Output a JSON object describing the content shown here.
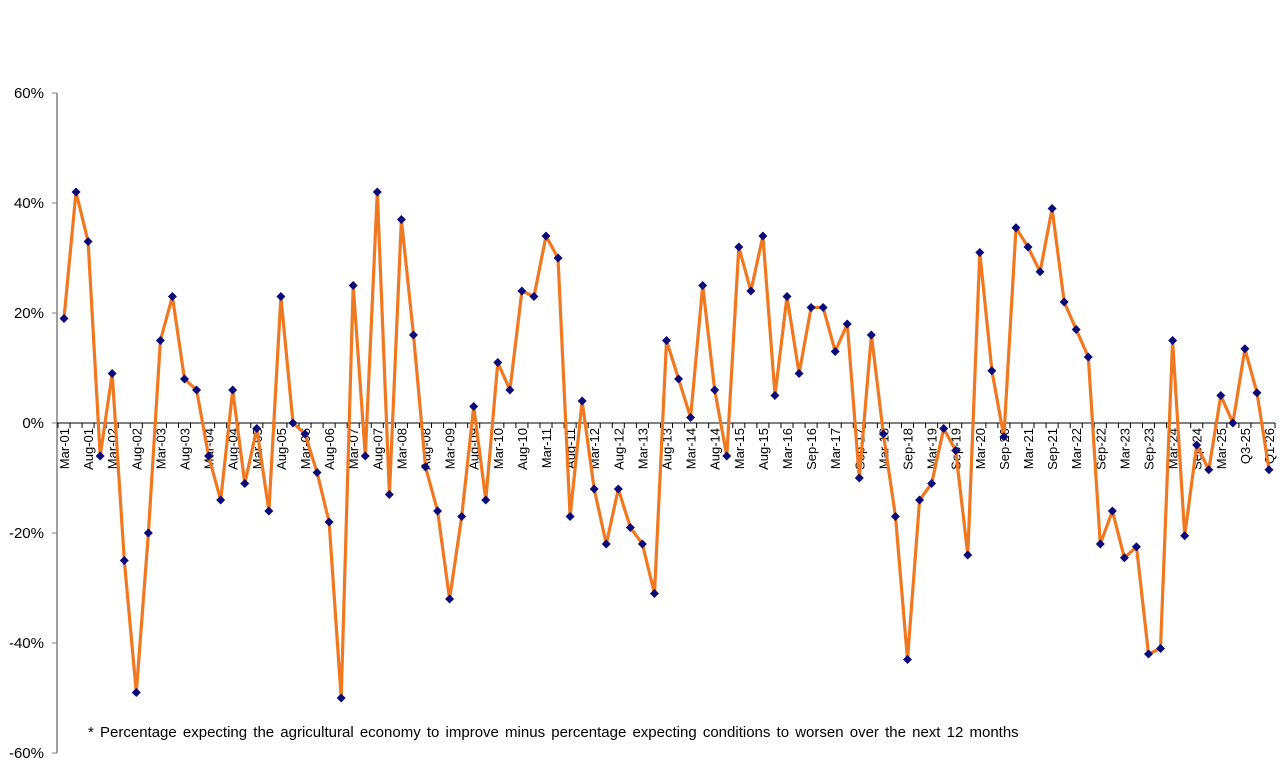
{
  "chart_data": {
    "type": "line",
    "title": "",
    "xlabel": "",
    "ylabel": "",
    "ylim": [
      -60,
      60
    ],
    "yticks": [
      "60%",
      "40%",
      "20%",
      "0%",
      "-20%",
      "-40%",
      "-60%"
    ],
    "ytick_values": [
      60,
      40,
      20,
      0,
      -20,
      -40,
      -60
    ],
    "grid": false,
    "legend": "none",
    "line_color": "#F07820",
    "marker_color": "#0A0A78",
    "marker": "diamond",
    "x_tick_labels": [
      "Mar-01",
      "Aug-01",
      "Mar-02",
      "Aug-02",
      "Mar-03",
      "Aug-03",
      "Mar-04",
      "Aug-04",
      "Mar-05",
      "Aug-05",
      "Mar-06",
      "Aug-06",
      "Mar-07",
      "Aug-07",
      "Mar-08",
      "Aug-08",
      "Mar-09",
      "Aug-09",
      "Mar-10",
      "Aug-10",
      "Mar-11",
      "Aug-11",
      "Mar-12",
      "Aug-12",
      "Mar-13",
      "Aug-13",
      "Mar-14",
      "Aug-14",
      "Mar-15",
      "Aug-15",
      "Mar-16",
      "Sep-16",
      "Mar-17",
      "Sep-17",
      "Mar-18",
      "Sep-18",
      "Mar-19",
      "Sep-19",
      "Mar-20",
      "Sep-20",
      "Mar-21",
      "Sep-21",
      "Mar-22",
      "Sep-22",
      "Mar-23",
      "Sep-23",
      "Mar-24",
      "Sep-24",
      "Mar-25",
      "Q3-25",
      "Q1-26"
    ],
    "values": [
      19,
      42,
      33,
      -6,
      9,
      -25,
      -49,
      -20,
      15,
      23,
      8,
      6,
      -6,
      -14,
      6,
      -11,
      -1,
      -16,
      23,
      0,
      -2,
      -9,
      -18,
      -50,
      25,
      -6,
      42,
      -13,
      37,
      16,
      -8,
      -16,
      -32,
      -17,
      3,
      -14,
      11,
      6,
      24,
      23,
      34,
      30,
      -17,
      4,
      -12,
      -22,
      -12,
      -19,
      -22,
      -31,
      15,
      8,
      1,
      25,
      6,
      -6,
      32,
      24,
      34,
      5,
      23,
      9,
      21,
      21,
      13,
      18,
      -10,
      16,
      -2,
      -17,
      -43,
      -14,
      -11,
      -1,
      -5,
      -24,
      31,
      9.5,
      -2.5,
      35.5,
      32,
      27.5,
      39,
      22,
      17,
      12,
      -22,
      -16,
      -24.5,
      -22.5,
      -42,
      -41,
      15,
      -20.5,
      -4,
      -8.5,
      5,
      0,
      13.5,
      5.5,
      -8.5
    ],
    "footnote": "* Percentage expecting the agricultural economy to improve minus percentage expecting conditions to worsen over the next 12 months"
  }
}
